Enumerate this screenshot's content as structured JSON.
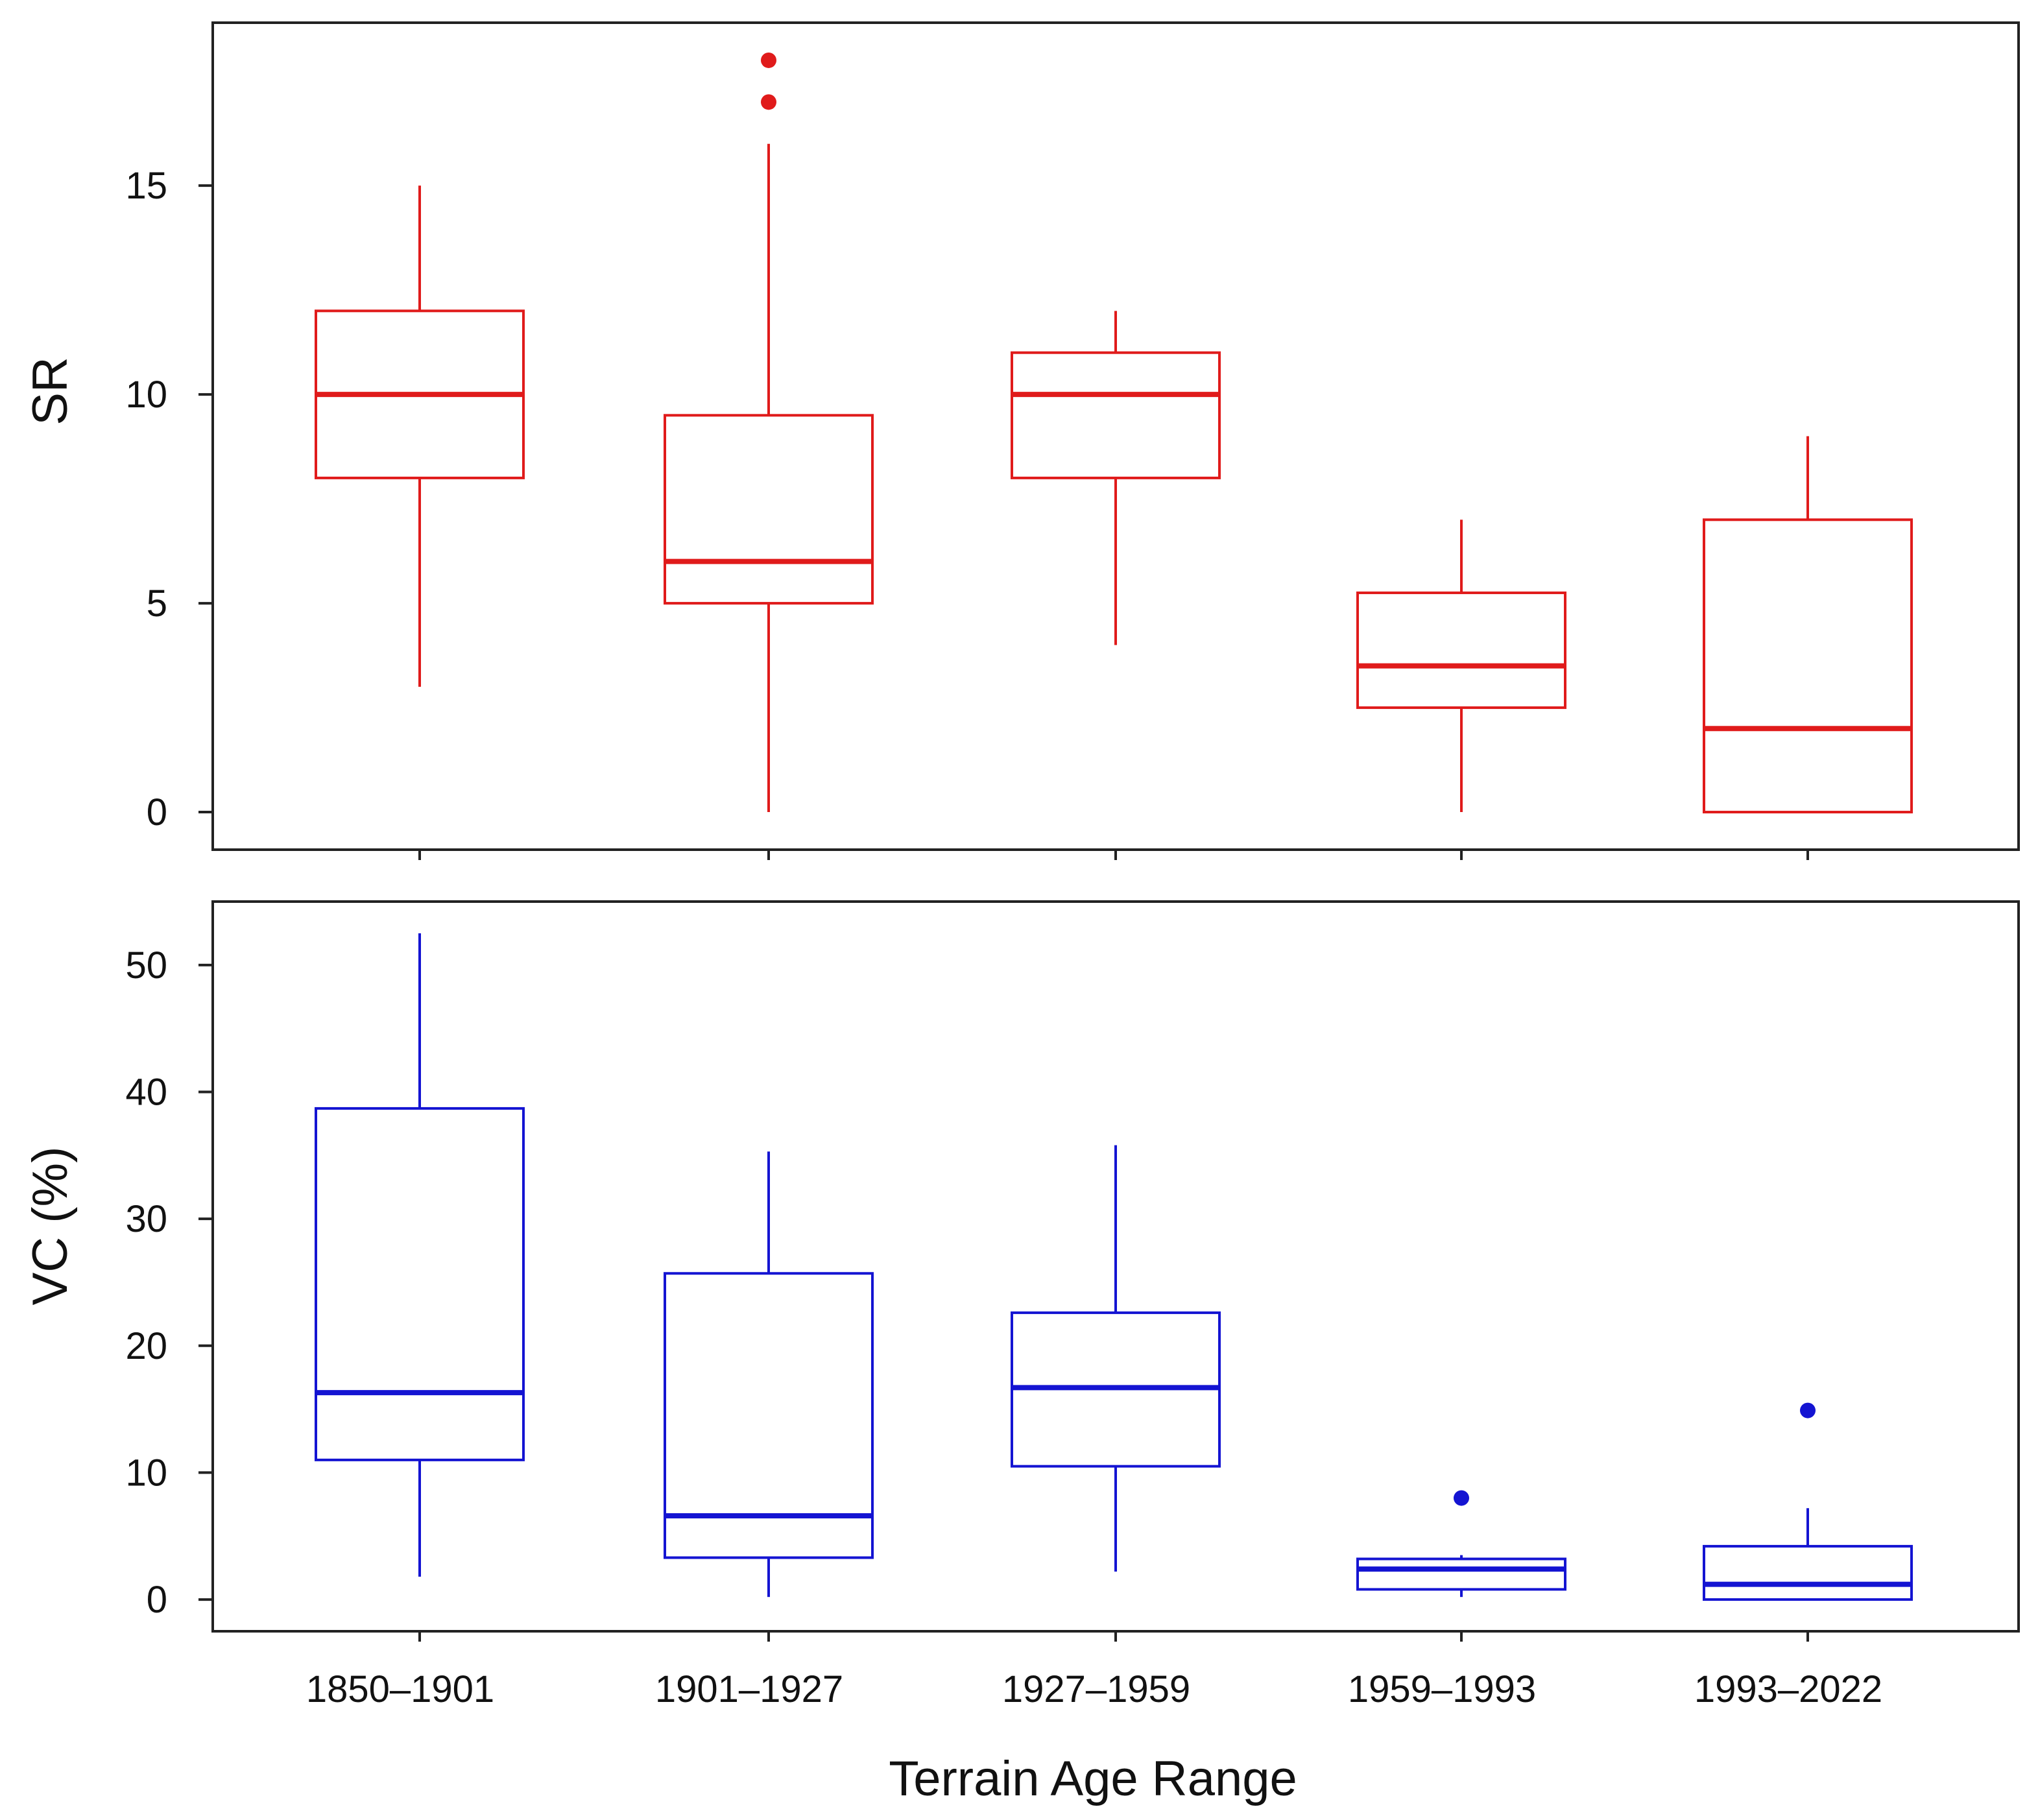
{
  "colors": {
    "sr": "#e01b1b",
    "vc": "#1414d2",
    "axis": "#222222"
  },
  "chart_data": [
    {
      "type": "box",
      "panel": "top",
      "ylabel": "SR",
      "xlabel": "Terrain Age Range",
      "ylim": [
        -0.9,
        18.9
      ],
      "yticks": [
        0,
        5,
        10,
        15
      ],
      "categories": [
        "1850–1901",
        "1901–1927",
        "1927–1959",
        "1959–1993",
        "1993–2022"
      ],
      "boxes": [
        {
          "whisker_low": 3,
          "q1": 8,
          "median": 10,
          "q3": 12,
          "whisker_high": 15,
          "outliers": []
        },
        {
          "whisker_low": 0,
          "q1": 5,
          "median": 6,
          "q3": 9.5,
          "whisker_high": 16,
          "outliers": [
            17,
            18
          ]
        },
        {
          "whisker_low": 4,
          "q1": 8,
          "median": 10,
          "q3": 11,
          "whisker_high": 12,
          "outliers": []
        },
        {
          "whisker_low": 0,
          "q1": 2.5,
          "median": 3.5,
          "q3": 5.25,
          "whisker_high": 7,
          "outliers": []
        },
        {
          "whisker_low": 0,
          "q1": 0,
          "median": 2,
          "q3": 7,
          "whisker_high": 9,
          "outliers": []
        }
      ]
    },
    {
      "type": "box",
      "panel": "bottom",
      "ylabel": "VC (%)",
      "xlabel": "Terrain Age Range",
      "ylim": [
        -2.5,
        55
      ],
      "yticks": [
        0,
        10,
        20,
        30,
        40,
        50
      ],
      "categories": [
        "1850–1901",
        "1901–1927",
        "1927–1959",
        "1959–1993",
        "1993–2022"
      ],
      "boxes": [
        {
          "whisker_low": 1.8,
          "q1": 11,
          "median": 16.3,
          "q3": 38.7,
          "whisker_high": 52.5,
          "outliers": []
        },
        {
          "whisker_low": 0.2,
          "q1": 3.3,
          "median": 6.6,
          "q3": 25.7,
          "whisker_high": 35.3,
          "outliers": []
        },
        {
          "whisker_low": 2.2,
          "q1": 10.5,
          "median": 16.7,
          "q3": 22.6,
          "whisker_high": 35.8,
          "outliers": []
        },
        {
          "whisker_low": 0.2,
          "q1": 0.8,
          "median": 2.4,
          "q3": 3.2,
          "whisker_high": 3.5,
          "outliers": [
            8
          ]
        },
        {
          "whisker_low": 0,
          "q1": 0,
          "median": 1.2,
          "q3": 4.2,
          "whisker_high": 7.2,
          "outliers": [
            14.9
          ]
        }
      ]
    }
  ]
}
